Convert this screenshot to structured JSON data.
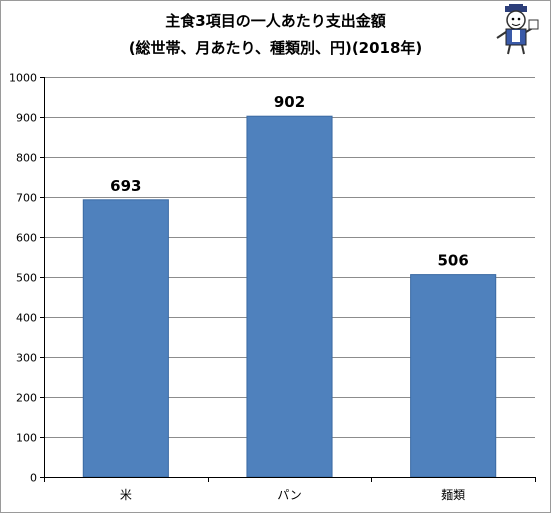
{
  "chart_data": {
    "type": "bar",
    "title_line1": "主食3項目の一人あたり支出金額",
    "title_line2": "(総世帯、月あたり、種類別、円)(2018年)",
    "categories": [
      "米",
      "パン",
      "麺類"
    ],
    "values": [
      693,
      902,
      506
    ],
    "data_labels": [
      "693",
      "902",
      "506"
    ],
    "ylim": [
      0,
      1000
    ],
    "yticks": [
      0,
      100,
      200,
      300,
      400,
      500,
      600,
      700,
      800,
      900,
      1000
    ],
    "grid": true,
    "legend": "none",
    "bar_color": "#4f81bd",
    "bar_stroke": "#3a6aa3",
    "grid_color": "#8c8c8c"
  },
  "mascot_icon": "mascot-character-icon"
}
